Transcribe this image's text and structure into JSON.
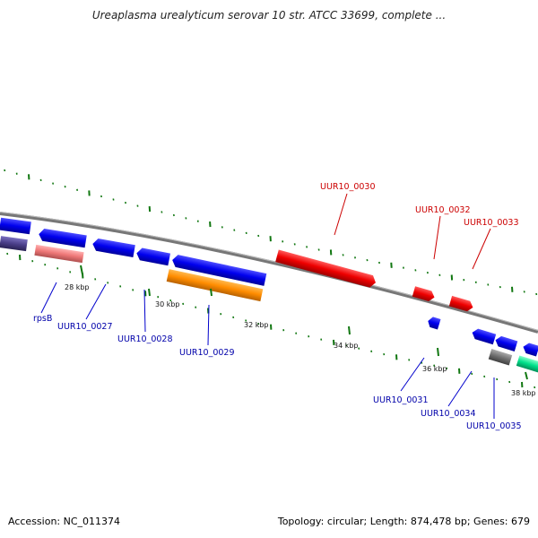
{
  "title": "Ureaplasma urealyticum serovar 10 str. ATCC 33699, complete ...",
  "footer": {
    "accession": "Accession: NC_011374",
    "summary": "Topology: circular; Length: 874,478 bp; Genes: 679"
  },
  "ticks": [
    "28 kbp",
    "30 kbp",
    "32 kbp",
    "34 kbp",
    "36 kbp",
    "38 kbp"
  ],
  "genes": [
    {
      "name": "rpsB",
      "color": "#0000cc"
    },
    {
      "name": "UUR10_0027",
      "color": "#0000cc"
    },
    {
      "name": "UUR10_0028",
      "color": "#0000cc"
    },
    {
      "name": "UUR10_0029",
      "color": "#0000cc"
    },
    {
      "name": "UUR10_0030",
      "color": "#cc0000"
    },
    {
      "name": "UUR10_0031",
      "color": "#0000cc"
    },
    {
      "name": "UUR10_0032",
      "color": "#cc0000"
    },
    {
      "name": "UUR10_0033",
      "color": "#cc0000"
    },
    {
      "name": "UUR10_0034",
      "color": "#0000cc"
    },
    {
      "name": "UUR10_0035",
      "color": "#0000cc"
    }
  ],
  "colors": {
    "forward_cds": "#ff0000",
    "reverse_cds": "#0000ff",
    "rrna": "#ff8c00",
    "trna": "#f08080",
    "misc": "#4b3f8a",
    "other": "#00e08a",
    "pseudo": "#707070",
    "backbone": "#888888",
    "gc_ticks": "#117711"
  }
}
